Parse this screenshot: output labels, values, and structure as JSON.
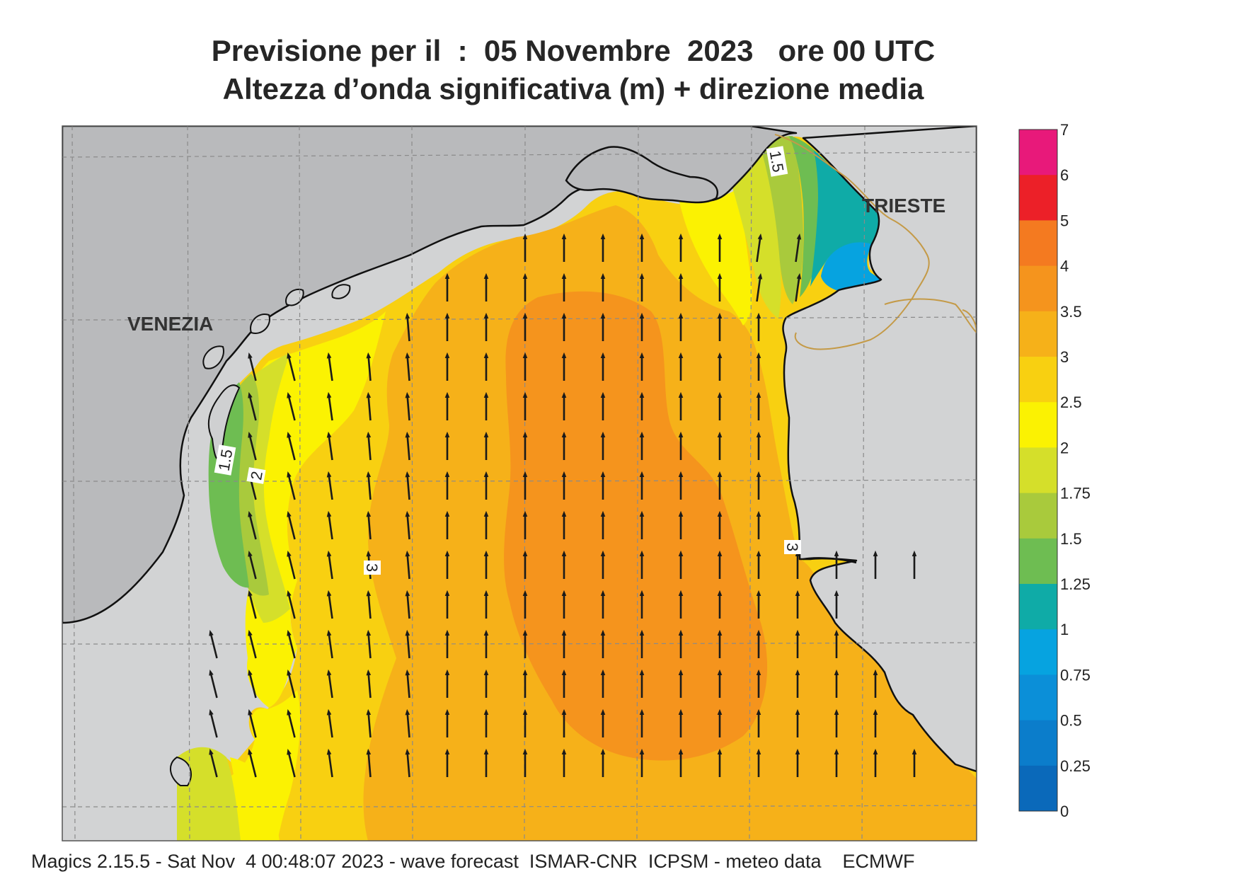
{
  "title": {
    "line1": "Previsione per il  :  05 Novembre  2023   ore 00 UTC",
    "line2": "Altezza d’onda significativa (m) + direzione media"
  },
  "labels": {
    "venezia": "VENEZIA",
    "trieste": "TRIESTE",
    "contour_1_5": "1.5",
    "contour_2": "2",
    "contour_3": "3",
    "contour_1_5_ne": "1.5",
    "contour_3_e": "3"
  },
  "colorbar": {
    "ticks": [
      "7",
      "6",
      "5",
      "4",
      "3.5",
      "3",
      "2.5",
      "2",
      "1.75",
      "1.5",
      "1.25",
      "1",
      "0.75",
      "0.5",
      "0.25",
      "0"
    ],
    "colors": [
      "#e8197a",
      "#ec2028",
      "#f47a20",
      "#f5941d",
      "#f6b119",
      "#f8d011",
      "#fbf202",
      "#d5df2a",
      "#a9ca3c",
      "#6ebd52",
      "#0faba7",
      "#06a3e0",
      "#0b8fd8",
      "#0b7dcb",
      "#0a69ba"
    ]
  },
  "footer": "Magics 2.15.5 - Sat Nov  4 00:48:07 2023 - wave forecast  ISMAR-CNR  ICPSM - meteo data    ECMWF"
}
